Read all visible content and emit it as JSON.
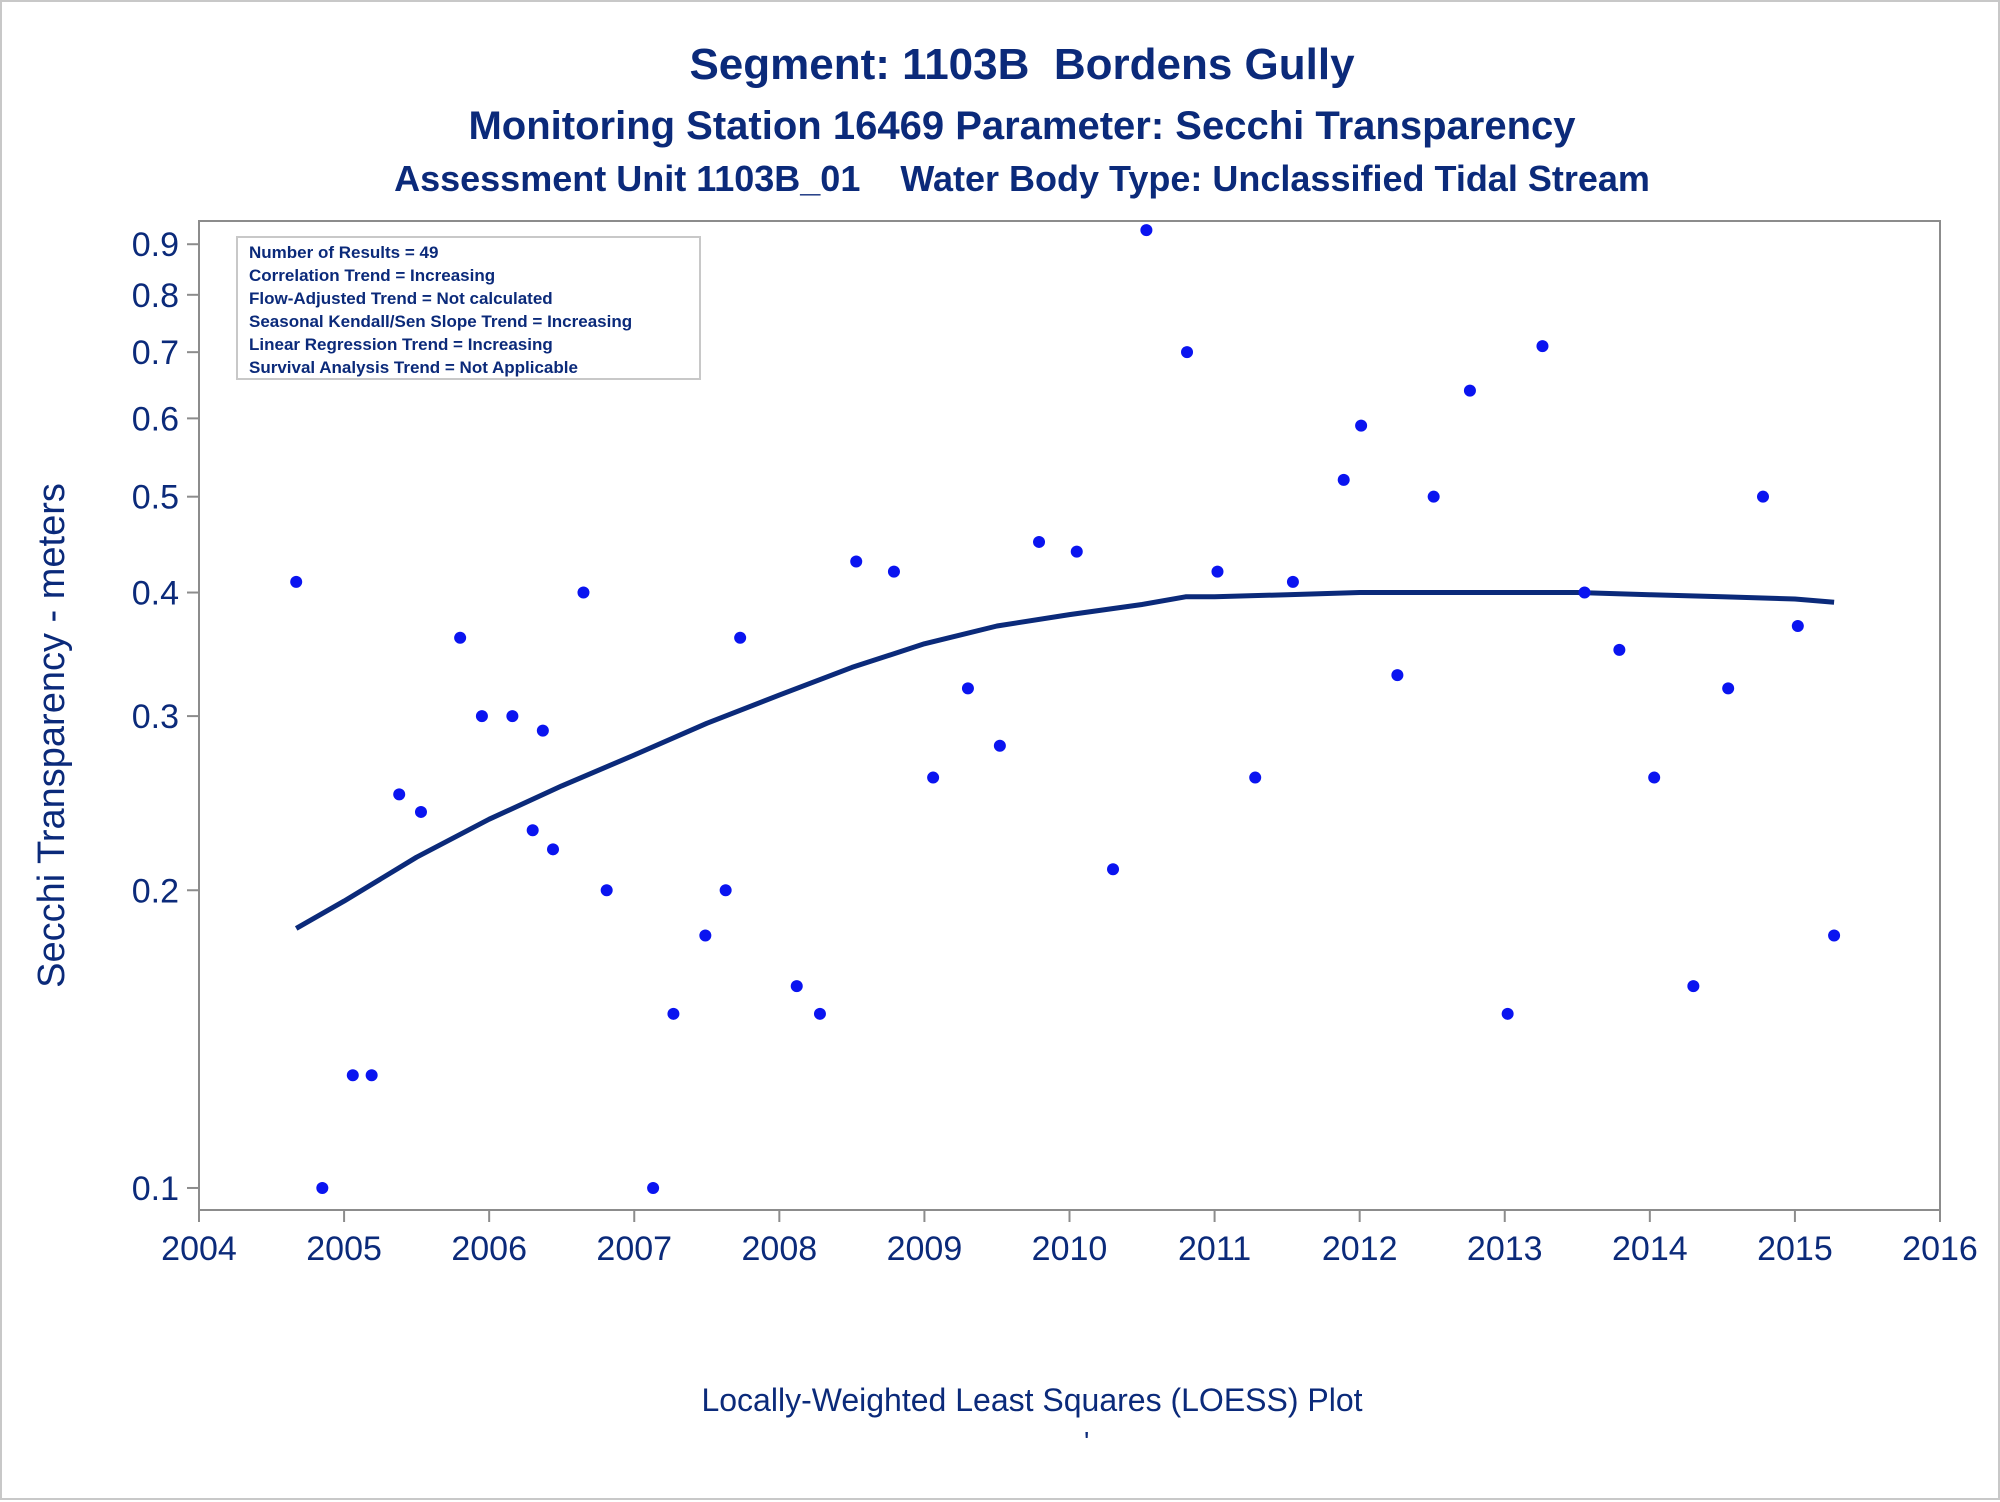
{
  "titles": {
    "line1": "Segment: 1103B  Bordens Gully",
    "line2": "Monitoring Station 16469 Parameter: Secchi Transparency",
    "line3": "Assessment Unit 1103B_01    Water Body Type: Unclassified Tidal Stream"
  },
  "footnote": "Locally-Weighted Least Squares (LOESS) Plot",
  "footnote_mark": "'",
  "chart_data": {
    "type": "scatter",
    "ylabel": "Secchi Transparency - meters",
    "xlabel": "",
    "y_scale": "log",
    "xlim": [
      2004,
      2016
    ],
    "ylim": [
      0.095,
      0.95
    ],
    "x_ticks": [
      2004,
      2005,
      2006,
      2007,
      2008,
      2009,
      2010,
      2011,
      2012,
      2013,
      2014,
      2015,
      2016
    ],
    "y_ticks": [
      0.1,
      0.2,
      0.3,
      0.4,
      0.5,
      0.6,
      0.7,
      0.8,
      0.9
    ],
    "y_tick_labels": [
      "0.1",
      "0.2",
      "0.3",
      "0.4",
      "0.5",
      "0.6",
      "0.7",
      "0.8",
      "0.9"
    ],
    "legend_box": {
      "placement": "top-left",
      "lines": [
        "Number of Results = 49",
        "Correlation Trend = Increasing",
        "Flow-Adjusted Trend = Not calculated",
        "Seasonal Kendall/Sen Slope Trend = Increasing",
        "Linear Regression Trend = Increasing",
        "Survival Analysis Trend = Not Applicable"
      ]
    },
    "colors": {
      "points": "#0a14f0",
      "loess": "#0b2a7a",
      "text": "#0b2a7a",
      "axis": "#8c8c8c"
    },
    "series": [
      {
        "kind": "points",
        "x": [
          2004.67,
          2004.85,
          2005.06,
          2005.19,
          2005.38,
          2005.53,
          2005.8,
          2005.95,
          2006.16,
          2006.3,
          2006.37,
          2006.44,
          2006.65,
          2006.81,
          2007.13,
          2007.27,
          2007.49,
          2007.63,
          2007.73,
          2008.12,
          2008.28,
          2008.53,
          2008.79,
          2009.06,
          2009.3,
          2009.52,
          2009.79,
          2010.05,
          2010.3,
          2010.53,
          2010.81,
          2011.02,
          2011.28,
          2011.54,
          2011.89,
          2012.01,
          2012.26,
          2012.51,
          2012.76,
          2013.02,
          2013.26,
          2013.55,
          2013.79,
          2014.03,
          2014.3,
          2014.54,
          2014.78,
          2015.02,
          2015.27
        ],
        "y": [
          0.41,
          0.1,
          0.13,
          0.13,
          0.25,
          0.24,
          0.36,
          0.3,
          0.3,
          0.23,
          0.29,
          0.22,
          0.4,
          0.2,
          0.1,
          0.15,
          0.18,
          0.2,
          0.36,
          0.16,
          0.15,
          0.43,
          0.42,
          0.26,
          0.32,
          0.28,
          0.45,
          0.44,
          0.21,
          0.93,
          0.7,
          0.42,
          0.26,
          0.41,
          0.52,
          0.59,
          0.33,
          0.5,
          0.64,
          0.15,
          0.71,
          0.4,
          0.35,
          0.26,
          0.16,
          0.32,
          0.5,
          0.37,
          0.18
        ]
      },
      {
        "kind": "line",
        "x": [
          2004.67,
          2005.0,
          2005.5,
          2006.0,
          2006.5,
          2007.0,
          2007.5,
          2008.0,
          2008.5,
          2009.0,
          2009.5,
          2010.0,
          2010.5,
          2010.8,
          2011.0,
          2011.5,
          2012.0,
          2012.5,
          2013.0,
          2013.5,
          2014.0,
          2014.5,
          2015.0,
          2015.27
        ],
        "y": [
          0.183,
          0.195,
          0.216,
          0.236,
          0.255,
          0.274,
          0.295,
          0.315,
          0.336,
          0.355,
          0.37,
          0.38,
          0.389,
          0.396,
          0.396,
          0.398,
          0.4,
          0.4,
          0.4,
          0.4,
          0.398,
          0.396,
          0.394,
          0.391
        ]
      }
    ]
  }
}
